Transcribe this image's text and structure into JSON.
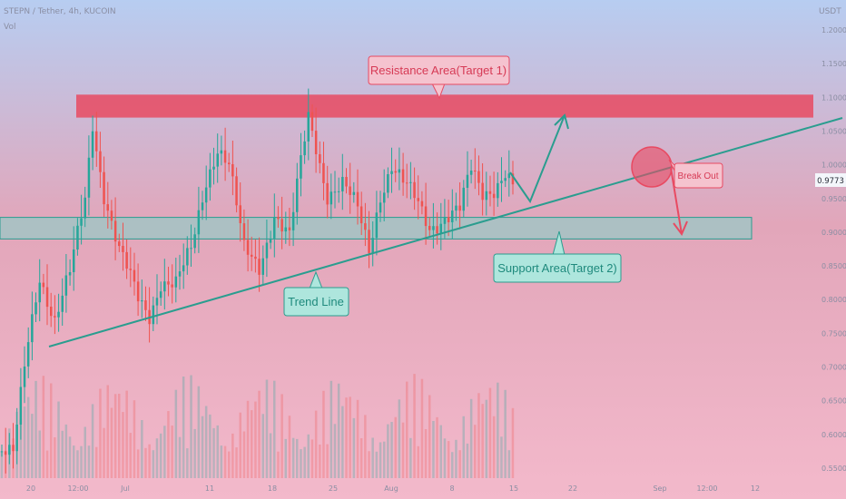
{
  "header": {
    "symbol_line": "STEPN / Tether, 4h, KUCOIN",
    "volume_label": "Vol",
    "currency": "USDT"
  },
  "chart_data": {
    "type": "candlestick",
    "title": "STEPN / Tether, 4h, KUCOIN",
    "ylim": [
      0.54,
      1.22
    ],
    "y_ticks": [
      "1.2000",
      "1.1500",
      "1.1000",
      "1.0500",
      "1.0000",
      "0.9500",
      "0.9000",
      "0.8500",
      "0.8000",
      "0.7500",
      "0.7000",
      "0.6500",
      "0.6000",
      "0.5500"
    ],
    "x_ticks": [
      "20",
      "12:00",
      "Jul",
      "11",
      "18",
      "25",
      "Aug",
      "8",
      "15",
      "22",
      "Sep",
      "12:00",
      "12"
    ],
    "last_price": "0.9773",
    "candle_series": {
      "start_price": 0.575,
      "anchors": [
        [
          0,
          0.575
        ],
        [
          3,
          0.565
        ],
        [
          7,
          0.74
        ],
        [
          10,
          0.84
        ],
        [
          14,
          0.77
        ],
        [
          18,
          0.835
        ],
        [
          22,
          0.95
        ],
        [
          24,
          1.065
        ],
        [
          27,
          0.96
        ],
        [
          31,
          0.87
        ],
        [
          36,
          0.8
        ],
        [
          39,
          0.78
        ],
        [
          42,
          0.83
        ],
        [
          46,
          0.82
        ],
        [
          50,
          0.87
        ],
        [
          54,
          0.98
        ],
        [
          57,
          1.03
        ],
        [
          60,
          1.0
        ],
        [
          64,
          0.87
        ],
        [
          68,
          0.85
        ],
        [
          72,
          0.93
        ],
        [
          76,
          0.89
        ],
        [
          79,
          1.0
        ],
        [
          81,
          1.07
        ],
        [
          83,
          1.03
        ],
        [
          86,
          0.96
        ],
        [
          90,
          0.97
        ],
        [
          94,
          0.93
        ],
        [
          97,
          0.875
        ],
        [
          100,
          0.96
        ],
        [
          103,
          1.0
        ],
        [
          106,
          0.97
        ],
        [
          110,
          0.94
        ],
        [
          113,
          0.91
        ],
        [
          117,
          0.925
        ],
        [
          121,
          0.93
        ],
        [
          124,
          0.99
        ],
        [
          127,
          0.96
        ],
        [
          130,
          0.97
        ],
        [
          133,
          0.99
        ],
        [
          135,
          0.965
        ]
      ],
      "count": 136
    },
    "volume_scale": [
      0,
      1
    ],
    "annotations": [
      {
        "kind": "zone",
        "name": "resistance",
        "label": "Resistance Area(Target 1)",
        "price_top": 1.104,
        "price_bottom": 1.07,
        "color": "#e84a62"
      },
      {
        "kind": "zone",
        "name": "support",
        "label": "Support Area(Target 2)",
        "price_top": 0.922,
        "price_bottom": 0.89,
        "color": "#7dd3c8"
      },
      {
        "kind": "trend_line",
        "label": "Trend Line",
        "from": [
          0.058,
          0.73
        ],
        "to": [
          1.0,
          1.065
        ],
        "color": "#2a9d8f"
      },
      {
        "kind": "breakout_circle",
        "label": "Break Out",
        "price": 0.995,
        "color": "#e84a62"
      }
    ],
    "colors": {
      "up": "#26a69a",
      "down": "#ef5350",
      "text": "#8a8ea3"
    }
  }
}
